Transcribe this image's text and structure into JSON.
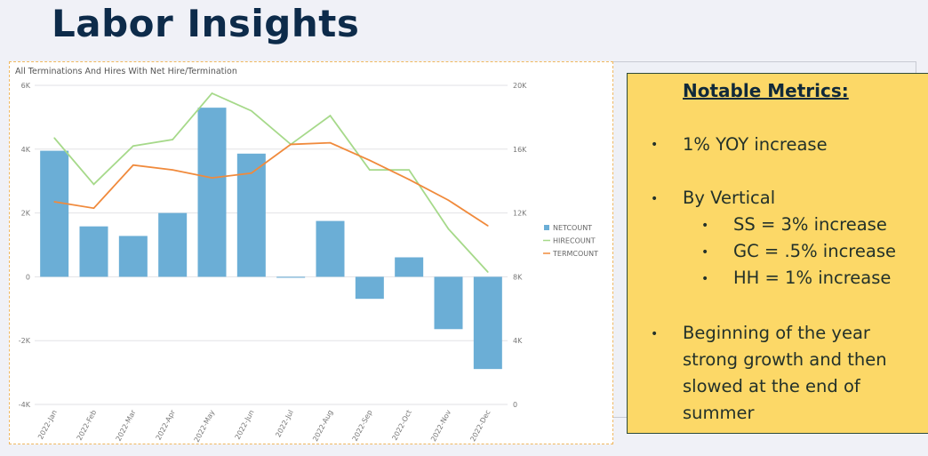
{
  "title": "Labor Insights",
  "chart_data": {
    "type": "bar+line",
    "title": "All Terminations And Hires With Net Hire/Termination",
    "categories": [
      "2022-Jan",
      "2022-Feb",
      "2022-Mar",
      "2022-Apr",
      "2022-May",
      "2022-Jun",
      "2022-Jul",
      "2022-Aug",
      "2022-Sep",
      "2022-Oct",
      "2022-Nov",
      "2022-Dec"
    ],
    "left_axis": {
      "ylim": [
        -4000,
        6000
      ],
      "ticks": [
        "-4K",
        "-2K",
        "0",
        "2K",
        "4K",
        "6K"
      ]
    },
    "right_axis": {
      "ylim": [
        0,
        20000
      ],
      "ticks": [
        "0",
        "4K",
        "8K",
        "12K",
        "16K",
        "20K"
      ]
    },
    "grid": true,
    "legend_position": "right",
    "series": [
      {
        "name": "NETCOUNT",
        "type": "bar",
        "axis": "left",
        "color": "#6baed6",
        "values": [
          3950,
          1580,
          1280,
          2000,
          5300,
          3860,
          -30,
          1750,
          -690,
          610,
          -1640,
          -2890
        ]
      },
      {
        "name": "HIRECOUNT",
        "type": "line",
        "axis": "right",
        "color": "#a6d98a",
        "values": [
          16700,
          13800,
          16200,
          16600,
          19500,
          18400,
          16300,
          18100,
          14700,
          14700,
          11000,
          8300
        ]
      },
      {
        "name": "TERMCOUNT",
        "type": "line",
        "axis": "right",
        "color": "#f08a3c",
        "values": [
          12700,
          12300,
          15000,
          14700,
          14200,
          14500,
          16300,
          16400,
          15300,
          14100,
          12800,
          11200
        ]
      }
    ]
  },
  "notes": {
    "heading": "Notable Metrics:",
    "bullet1": "1% YOY increase",
    "bullet2": "By Vertical",
    "sub1": "SS = 3% increase",
    "sub2": "GC = .5% increase",
    "sub3": "HH = 1% increase",
    "bullet3_lines": [
      "Beginning of the year",
      "strong growth and then",
      "slowed at the end of",
      "summer"
    ],
    "bullet_glyph": "•"
  }
}
